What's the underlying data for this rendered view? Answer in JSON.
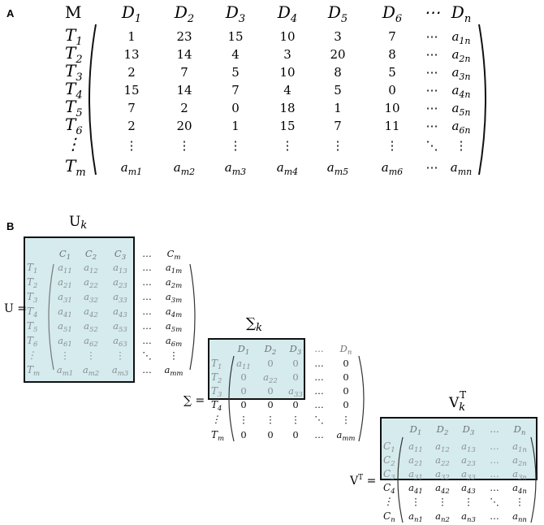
{
  "panel_a": {
    "label": "A",
    "corner": "M",
    "cols": [
      "D1",
      "D2",
      "D3",
      "D4",
      "D5",
      "D6",
      "⋯",
      "Dn"
    ],
    "rows": [
      "T1",
      "T2",
      "T3",
      "T4",
      "T5",
      "T6",
      "⋮",
      "Tm"
    ],
    "cells": [
      [
        "1",
        "23",
        "15",
        "10",
        "3",
        "7",
        "⋯",
        "a1n"
      ],
      [
        "13",
        "14",
        "4",
        "3",
        "20",
        "8",
        "⋯",
        "a2n"
      ],
      [
        "2",
        "7",
        "5",
        "10",
        "8",
        "5",
        "⋯",
        "a3n"
      ],
      [
        "15",
        "14",
        "7",
        "4",
        "5",
        "0",
        "⋯",
        "a4n"
      ],
      [
        "7",
        "2",
        "0",
        "18",
        "1",
        "10",
        "⋯",
        "a5n"
      ],
      [
        "2",
        "20",
        "1",
        "15",
        "7",
        "11",
        "⋯",
        "a6n"
      ],
      [
        "⋮",
        "⋮",
        "⋮",
        "⋮",
        "⋮",
        "⋮",
        "⋱",
        "⋮"
      ],
      [
        "am1",
        "am2",
        "am3",
        "am4",
        "am5",
        "am6",
        "⋯",
        "amn"
      ]
    ]
  },
  "panel_b": {
    "label": "B",
    "u": {
      "title": "Uk",
      "eq_label": "U =",
      "cols": [
        "C1",
        "C2",
        "C3",
        "…",
        "Cm"
      ],
      "rows": [
        "T1",
        "T2",
        "T3",
        "T4",
        "T5",
        "T6",
        "⋮",
        "Tm"
      ],
      "cells": [
        [
          "a11",
          "a12",
          "a13",
          "…",
          "a1m"
        ],
        [
          "a21",
          "a22",
          "a23",
          "…",
          "a2m"
        ],
        [
          "a31",
          "a32",
          "a33",
          "…",
          "a3m"
        ],
        [
          "a41",
          "a42",
          "a43",
          "…",
          "a4m"
        ],
        [
          "a51",
          "a52",
          "a53",
          "…",
          "a5m"
        ],
        [
          "a61",
          "a62",
          "a63",
          "…",
          "a6m"
        ],
        [
          "⋮",
          "⋮",
          "⋮",
          "⋱",
          "⋮"
        ],
        [
          "am1",
          "am2",
          "am3",
          "…",
          "amm"
        ]
      ]
    },
    "sigma": {
      "title": "∑k",
      "eq_label": "∑ =",
      "cols": [
        "D1",
        "D2",
        "D3",
        "…",
        "Dn"
      ],
      "rows": [
        "T1",
        "T2",
        "T3",
        "T4",
        "⋮",
        "Tm"
      ],
      "cells": [
        [
          "a11",
          "0",
          "0",
          "…",
          "0"
        ],
        [
          "0",
          "a22",
          "0",
          "…",
          "0"
        ],
        [
          "0",
          "0",
          "a33",
          "…",
          "0"
        ],
        [
          "0",
          "0",
          "0",
          "…",
          "0"
        ],
        [
          "⋮",
          "⋮",
          "⋮",
          "⋱",
          "⋮"
        ],
        [
          "0",
          "0",
          "0",
          "…",
          "amm"
        ]
      ]
    },
    "v": {
      "title": "VkT",
      "eq_label": "VT =",
      "cols": [
        "D1",
        "D2",
        "D3",
        "…",
        "Dn"
      ],
      "rows": [
        "C1",
        "C2",
        "C3",
        "C4",
        "⋮",
        "Cn"
      ],
      "cells": [
        [
          "a11",
          "a12",
          "a13",
          "…",
          "a1n"
        ],
        [
          "a21",
          "a22",
          "a23",
          "…",
          "a2n"
        ],
        [
          "a31",
          "a32",
          "a33",
          "…",
          "a3n"
        ],
        [
          "a41",
          "a42",
          "a43",
          "…",
          "a4n"
        ],
        [
          "⋮",
          "⋮",
          "⋮",
          "⋱",
          "⋮"
        ],
        [
          "an1",
          "an2",
          "an3",
          "…",
          "ann"
        ]
      ]
    }
  },
  "colors": {
    "highlight_fill": "#d5ebee",
    "box_stroke": "#111111",
    "faded_text": "#8a8f93",
    "text": "#111111"
  }
}
